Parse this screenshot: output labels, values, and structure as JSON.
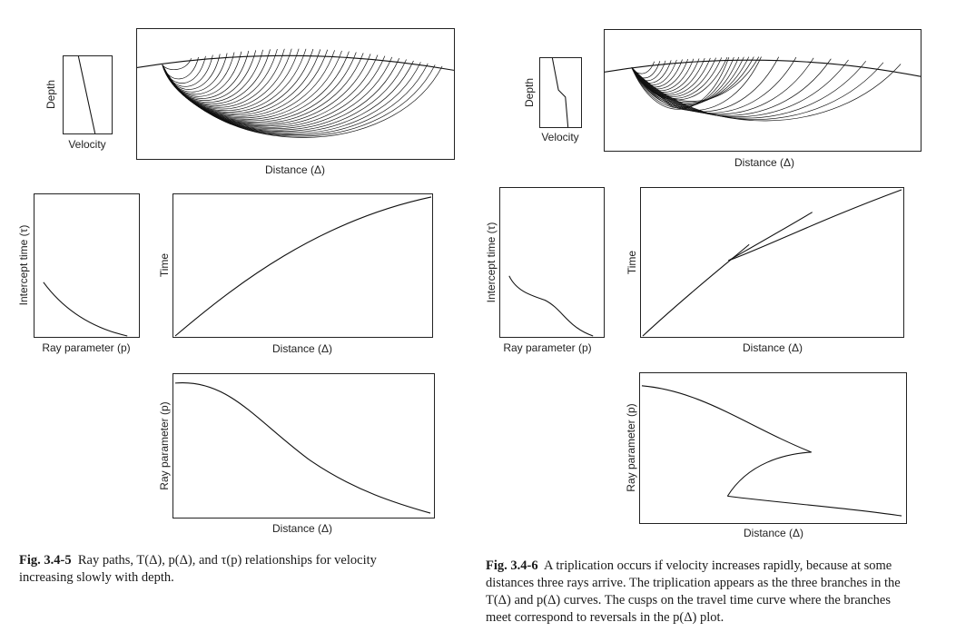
{
  "labels": {
    "depth": "Depth",
    "velocity": "Velocity",
    "distance": "Distance (Δ)",
    "intercept_time": "Intercept time (τ)",
    "ray_parameter": "Ray parameter (p)",
    "time": "Time"
  },
  "fig_left": {
    "number": "Fig. 3.4-5",
    "caption": "Ray paths, T(Δ), p(Δ), and τ(p) relationships for velocity increasing slowly with depth."
  },
  "fig_right": {
    "number": "Fig. 3.4-6",
    "caption": "A triplication occurs if velocity increases rapidly, because at some distances three rays arrive. The triplication appears as the three branches in the T(Δ) and p(Δ) curves. The cusps on the travel time curve where the branches meet correspond to reversals in the p(Δ) plot."
  }
}
